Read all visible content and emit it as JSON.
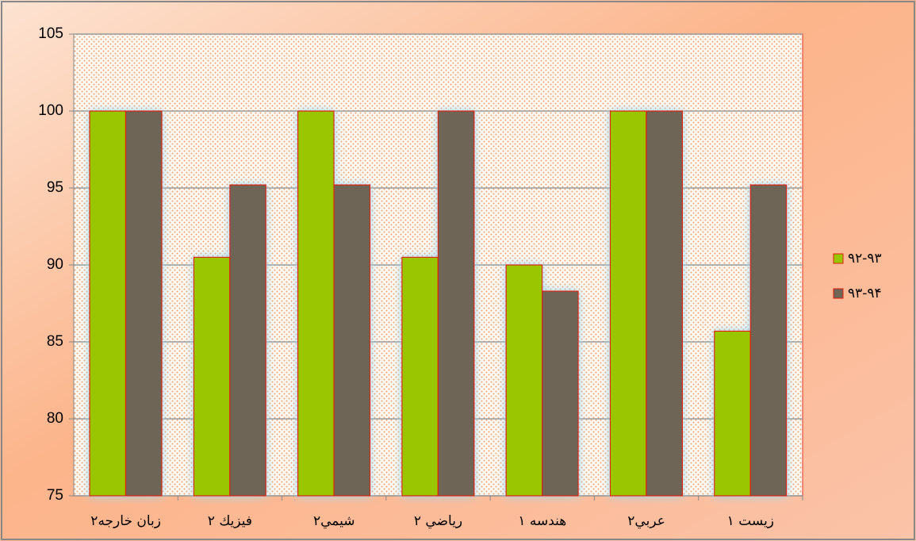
{
  "chart_data": {
    "type": "bar",
    "categories": [
      "زبان خارجه۲",
      "فيزيك ۲",
      "شيمي۲",
      "رياضي ۲",
      "هندسه ۱",
      "عربي۲",
      "زيست ۱"
    ],
    "series": [
      {
        "name": "۹۲-۹۳",
        "color": "#99c600",
        "values": [
          100,
          90.5,
          100,
          90.5,
          90,
          100,
          85.7
        ]
      },
      {
        "name": "۹۳-۹۴",
        "color": "#6e6557",
        "values": [
          100,
          95.2,
          95.2,
          100,
          88.3,
          100,
          95.2
        ]
      }
    ],
    "ylim": [
      75,
      105
    ],
    "yticks": [
      75,
      80,
      85,
      90,
      95,
      100,
      105
    ],
    "grid": true,
    "legend": "right"
  }
}
